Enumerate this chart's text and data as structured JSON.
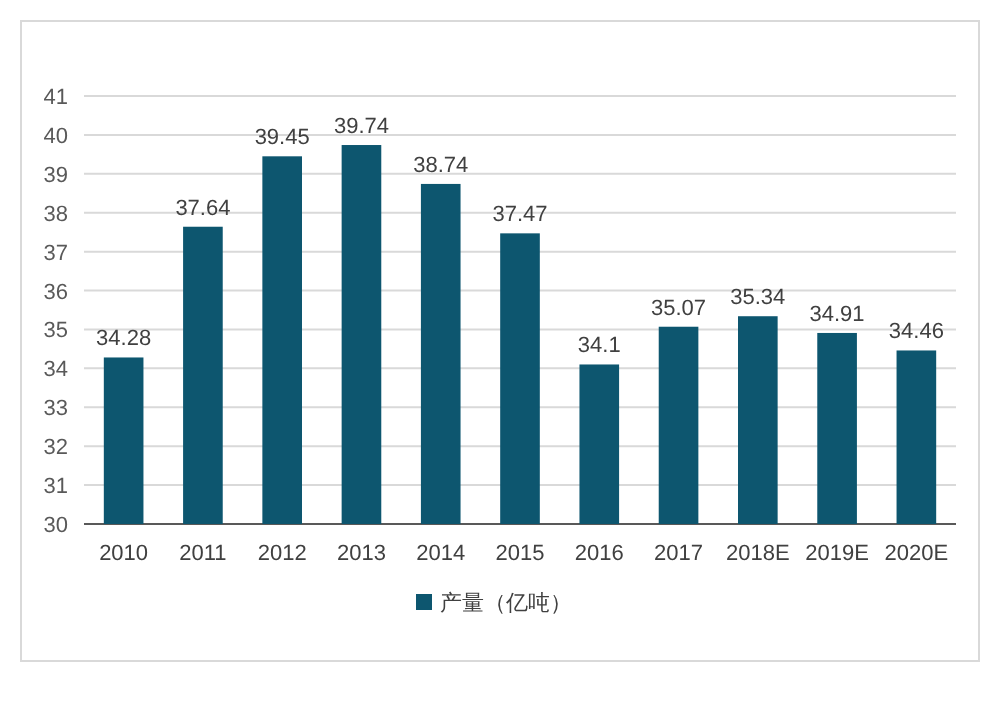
{
  "chart_data": {
    "type": "bar",
    "categories": [
      "2010",
      "2011",
      "2012",
      "2013",
      "2014",
      "2015",
      "2016",
      "2017",
      "2018E",
      "2019E",
      "2020E"
    ],
    "series": [
      {
        "name": "产量（亿吨）",
        "color": "#0d566f",
        "values": [
          34.28,
          37.64,
          39.45,
          39.74,
          38.74,
          37.47,
          34.1,
          35.07,
          35.34,
          34.91,
          34.46
        ]
      }
    ],
    "ylim": [
      30,
      41
    ],
    "yticks": [
      30,
      31,
      32,
      33,
      34,
      35,
      36,
      37,
      38,
      39,
      40,
      41
    ],
    "grid": "y",
    "legend": "bottom",
    "data_labels": true
  }
}
